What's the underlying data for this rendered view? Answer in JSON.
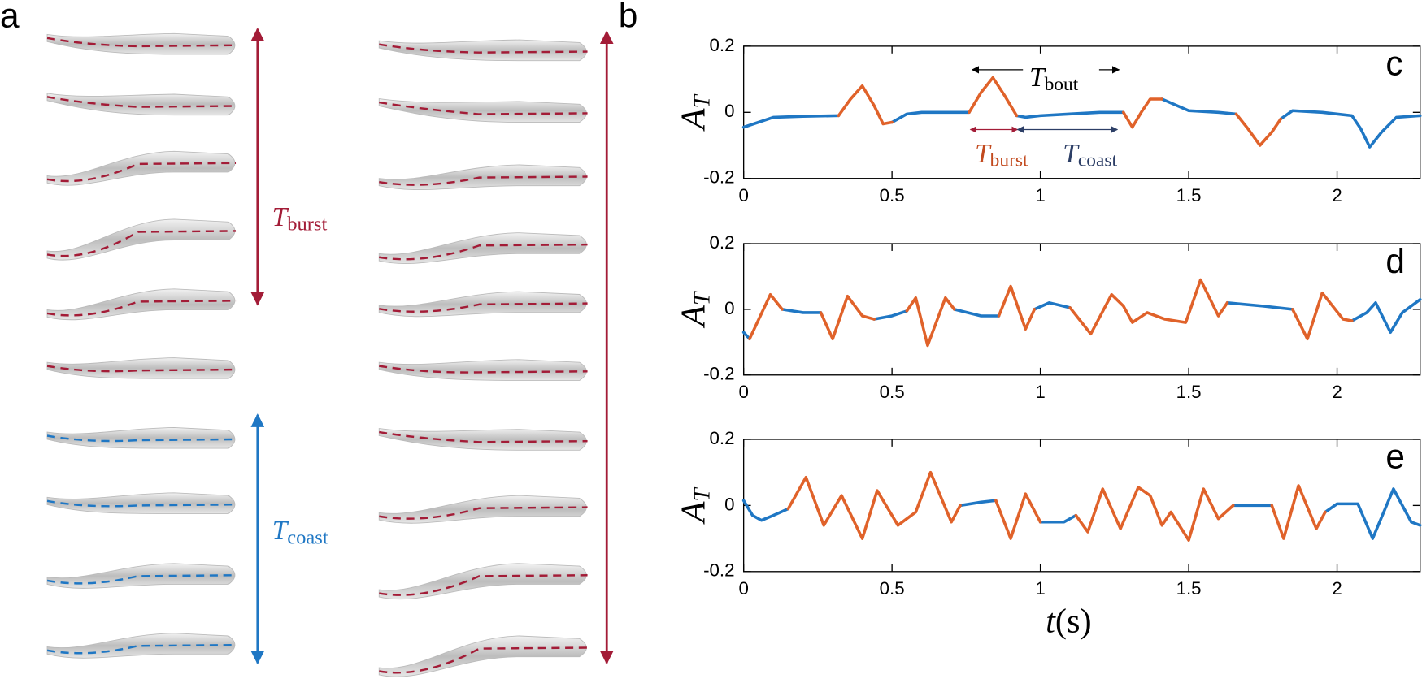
{
  "panels": {
    "a": {
      "label": "a",
      "burst": {
        "symbol": "T",
        "subscript": "burst"
      },
      "coast": {
        "symbol": "T",
        "subscript": "coast"
      }
    },
    "b": {
      "label": "b"
    }
  },
  "chart_data": [
    {
      "type": "line",
      "label": "c",
      "ylabel": {
        "symbol": "A",
        "subscript": "T"
      },
      "annotations": [
        {
          "symbol": "T",
          "subscript": "bout"
        },
        {
          "symbol": "T",
          "subscript": "burst"
        },
        {
          "symbol": "T",
          "subscript": "coast"
        }
      ],
      "xlim": [
        0,
        2.28
      ],
      "ylim": [
        -0.2,
        0.2
      ],
      "xticks": [
        0,
        0.5,
        1,
        1.5,
        2
      ],
      "yticks": [
        -0.2,
        0,
        0.2
      ],
      "x": [
        0,
        0.1,
        0.2,
        0.32,
        0.36,
        0.4,
        0.44,
        0.47,
        0.5,
        0.55,
        0.6,
        0.7,
        0.76,
        0.8,
        0.84,
        0.88,
        0.92,
        0.95,
        1.0,
        1.1,
        1.2,
        1.28,
        1.31,
        1.34,
        1.37,
        1.41,
        1.5,
        1.6,
        1.66,
        1.7,
        1.74,
        1.78,
        1.81,
        1.85,
        1.95,
        2.05,
        2.08,
        2.11,
        2.15,
        2.2,
        2.28
      ],
      "series": [
        {
          "color": "#1f77c4",
          "values": [
            -0.045,
            -0.015,
            -0.012,
            -0.01,
            null,
            null,
            null,
            null,
            -0.03,
            -0.005,
            0,
            0,
            0,
            null,
            null,
            null,
            -0.01,
            -0.015,
            -0.01,
            -0.005,
            0,
            0,
            null,
            null,
            null,
            0.04,
            0.005,
            0,
            -0.005,
            null,
            null,
            null,
            -0.02,
            0.005,
            0,
            -0.01,
            -0.05,
            -0.105,
            -0.06,
            -0.015,
            -0.01
          ]
        },
        {
          "color": "#e0622a",
          "values": [
            null,
            null,
            null,
            -0.01,
            0.04,
            0.08,
            0.02,
            -0.035,
            -0.03,
            null,
            null,
            null,
            0,
            0.06,
            0.105,
            0.05,
            -0.01,
            null,
            null,
            null,
            null,
            0,
            -0.045,
            0,
            0.04,
            0.04,
            null,
            null,
            -0.005,
            -0.05,
            -0.1,
            -0.06,
            -0.02,
            null,
            null,
            null,
            null,
            null,
            null,
            null,
            null
          ]
        }
      ]
    },
    {
      "type": "line",
      "label": "d",
      "ylabel": {
        "symbol": "A",
        "subscript": "T"
      },
      "xlim": [
        0,
        2.28
      ],
      "ylim": [
        -0.2,
        0.2
      ],
      "xticks": [
        0,
        0.5,
        1,
        1.5,
        2
      ],
      "yticks": [
        -0.2,
        0,
        0.2
      ],
      "x": [
        0,
        0.02,
        0.09,
        0.13,
        0.2,
        0.26,
        0.3,
        0.35,
        0.4,
        0.44,
        0.5,
        0.55,
        0.58,
        0.62,
        0.68,
        0.71,
        0.8,
        0.86,
        0.9,
        0.95,
        0.98,
        1.03,
        1.1,
        1.17,
        1.24,
        1.28,
        1.31,
        1.36,
        1.42,
        1.49,
        1.54,
        1.6,
        1.63,
        1.75,
        1.85,
        1.9,
        1.95,
        2.02,
        2.05,
        2.1,
        2.13,
        2.18,
        2.22,
        2.28
      ],
      "series": [
        {
          "color": "#1f77c4",
          "values": [
            -0.07,
            -0.09,
            null,
            0,
            -0.01,
            -0.01,
            null,
            null,
            null,
            -0.03,
            -0.02,
            -0.005,
            null,
            null,
            null,
            0,
            -0.02,
            -0.02,
            null,
            null,
            0,
            0.02,
            0.005,
            null,
            null,
            null,
            null,
            null,
            null,
            null,
            null,
            null,
            0.02,
            0.01,
            0,
            null,
            null,
            null,
            -0.035,
            -0.01,
            0.02,
            -0.07,
            -0.01,
            0.03
          ]
        },
        {
          "color": "#e0622a",
          "values": [
            null,
            -0.09,
            0.045,
            0,
            null,
            -0.01,
            -0.09,
            0.04,
            -0.02,
            -0.03,
            null,
            -0.005,
            0.035,
            -0.11,
            0.035,
            0,
            null,
            -0.02,
            0.07,
            -0.06,
            0,
            null,
            0.005,
            -0.075,
            0.045,
            0.01,
            -0.04,
            -0.01,
            -0.03,
            -0.04,
            0.09,
            -0.02,
            0.02,
            null,
            0,
            -0.09,
            0.05,
            -0.03,
            -0.035,
            null,
            null,
            null,
            null,
            null
          ]
        }
      ]
    },
    {
      "type": "line",
      "label": "e",
      "ylabel": {
        "symbol": "A",
        "subscript": "T"
      },
      "xlabel": {
        "symbol": "t",
        "unit": "(s)"
      },
      "xlim": [
        0,
        2.28
      ],
      "ylim": [
        -0.2,
        0.2
      ],
      "xticks": [
        0,
        0.5,
        1,
        1.5,
        2
      ],
      "yticks": [
        -0.2,
        0,
        0.2
      ],
      "x": [
        0,
        0.03,
        0.06,
        0.1,
        0.15,
        0.21,
        0.27,
        0.33,
        0.4,
        0.45,
        0.52,
        0.58,
        0.63,
        0.7,
        0.73,
        0.8,
        0.85,
        0.9,
        0.95,
        1.0,
        1.08,
        1.12,
        1.16,
        1.21,
        1.27,
        1.33,
        1.37,
        1.41,
        1.44,
        1.5,
        1.55,
        1.6,
        1.65,
        1.7,
        1.78,
        1.82,
        1.87,
        1.93,
        1.96,
        2.0,
        2.07,
        2.12,
        2.19,
        2.25,
        2.28
      ],
      "series": [
        {
          "color": "#1f77c4",
          "values": [
            0.015,
            -0.03,
            -0.045,
            -0.03,
            -0.01,
            null,
            null,
            null,
            null,
            null,
            null,
            null,
            null,
            null,
            0,
            0.01,
            0.015,
            null,
            null,
            -0.05,
            -0.05,
            -0.03,
            null,
            null,
            null,
            null,
            null,
            null,
            null,
            null,
            null,
            null,
            0,
            0,
            0,
            null,
            null,
            null,
            -0.02,
            0.005,
            0.005,
            -0.1,
            0.05,
            -0.05,
            -0.06
          ]
        },
        {
          "color": "#e0622a",
          "values": [
            null,
            null,
            null,
            null,
            -0.01,
            0.085,
            -0.06,
            0.03,
            -0.1,
            0.045,
            -0.06,
            -0.02,
            0.1,
            -0.05,
            0,
            null,
            0.015,
            -0.1,
            0.035,
            -0.05,
            null,
            -0.03,
            -0.08,
            0.05,
            -0.07,
            0.055,
            0.03,
            -0.06,
            -0.02,
            -0.105,
            0.05,
            -0.04,
            0,
            null,
            0,
            -0.1,
            0.06,
            -0.07,
            -0.02,
            null,
            null,
            null,
            null,
            null,
            null
          ]
        }
      ]
    }
  ]
}
